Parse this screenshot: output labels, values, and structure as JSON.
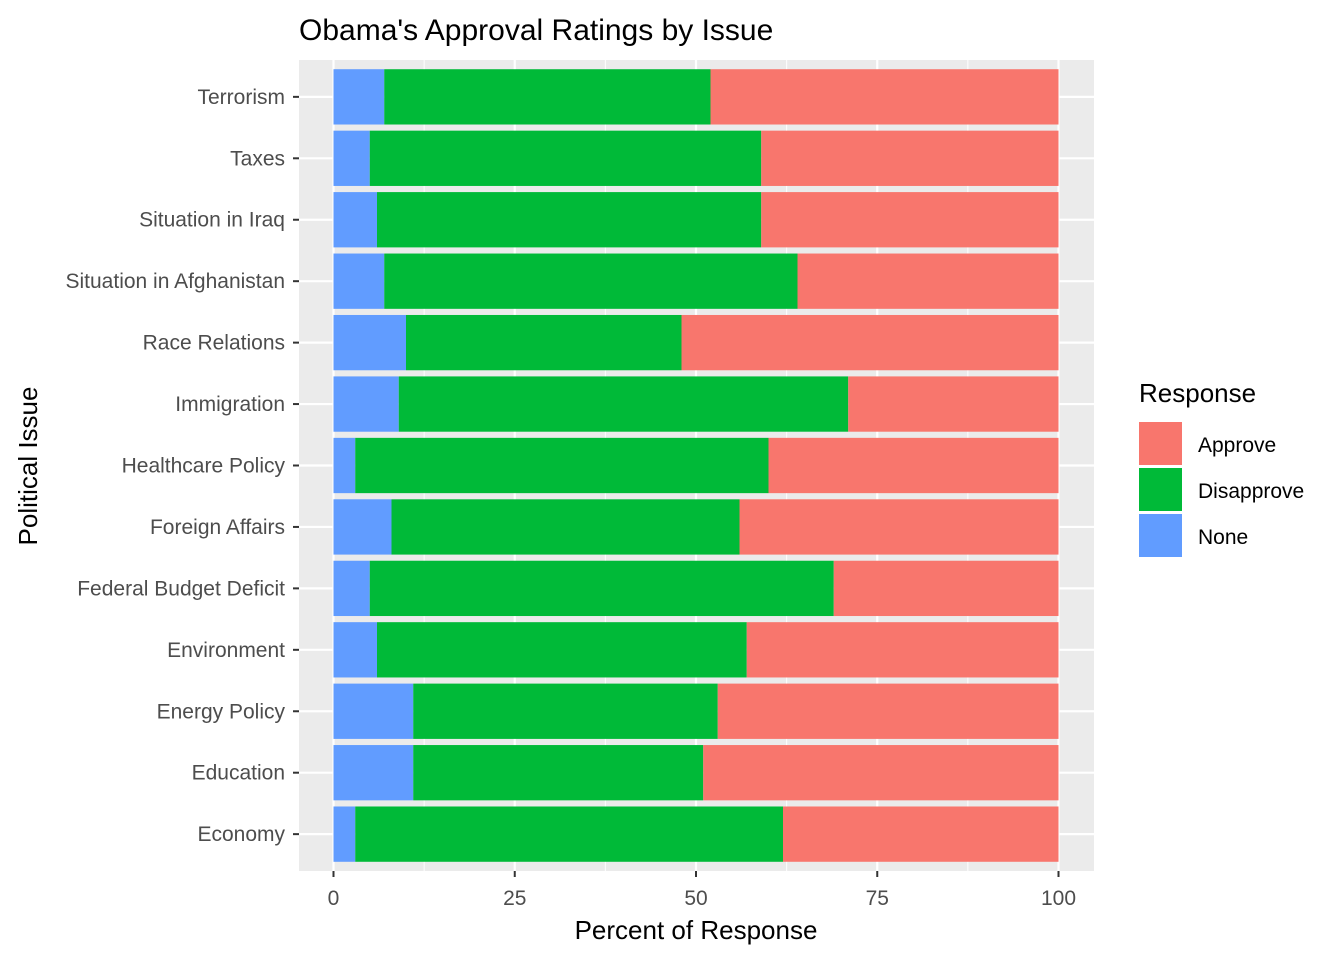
{
  "chart_data": {
    "type": "bar",
    "orientation": "horizontal",
    "stacked": true,
    "title": "Obama's Approval Ratings by Issue",
    "xlabel": "Percent of Response",
    "ylabel": "Political Issue",
    "xlim": [
      0,
      100
    ],
    "x_ticks": [
      "0",
      "25",
      "50",
      "75",
      "100"
    ],
    "categories": [
      "Terrorism",
      "Taxes",
      "Situation in Iraq",
      "Situation in Afghanistan",
      "Race Relations",
      "Immigration",
      "Healthcare Policy",
      "Foreign Affairs",
      "Federal Budget Deficit",
      "Environment",
      "Energy Policy",
      "Education",
      "Economy"
    ],
    "series": [
      {
        "name": "None",
        "color": "#619cff",
        "values": [
          7,
          5,
          6,
          7,
          10,
          9,
          3,
          8,
          5,
          6,
          11,
          11,
          3
        ]
      },
      {
        "name": "Disapprove",
        "color": "#00ba38",
        "values": [
          45,
          54,
          53,
          57,
          38,
          62,
          57,
          48,
          64,
          51,
          42,
          40,
          59
        ]
      },
      {
        "name": "Approve",
        "color": "#f8766d",
        "values": [
          48,
          41,
          41,
          36,
          52,
          29,
          40,
          44,
          31,
          43,
          47,
          49,
          38
        ]
      }
    ],
    "legend": {
      "title": "Response",
      "position": "right",
      "entries": [
        "Approve",
        "Disapprove",
        "None"
      ]
    },
    "grid": true,
    "panel_background": "#ebebeb"
  }
}
